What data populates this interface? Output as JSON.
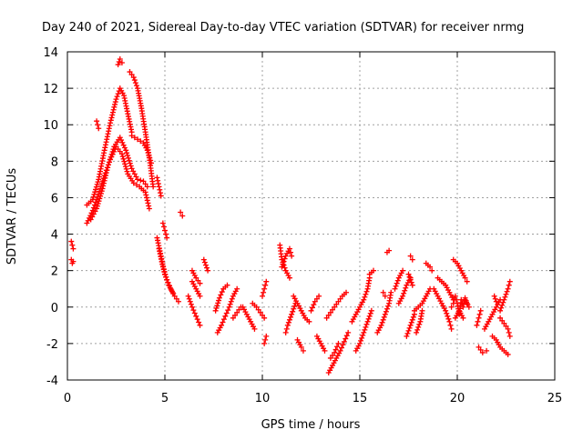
{
  "chart_data": {
    "type": "scatter",
    "title": "Day 240 of 2021, Sidereal Day-to-day VTEC variation (SDTVAR) for receiver nrmg",
    "xlabel": "GPS time / hours",
    "ylabel": "SDTVAR / TECUs",
    "xlim": [
      0,
      25
    ],
    "ylim": [
      -4,
      14
    ],
    "x_ticks": [
      0,
      5,
      10,
      15,
      20,
      25
    ],
    "y_ticks": [
      -4,
      -2,
      0,
      2,
      4,
      6,
      8,
      10,
      12,
      14
    ],
    "grid": true,
    "marker": "+",
    "marker_color": "#ff0000",
    "series": [
      {
        "name": "SDTVAR",
        "segments": [
          [
            [
              0.2,
              3.6
            ],
            [
              0.25,
              3.4
            ],
            [
              0.3,
              3.2
            ]
          ],
          [
            [
              0.2,
              2.6
            ],
            [
              0.25,
              2.4
            ],
            [
              0.3,
              2.5
            ]
          ],
          [
            [
              1.0,
              4.6
            ],
            [
              1.3,
              5.3
            ],
            [
              1.6,
              6.2
            ],
            [
              1.9,
              7.2
            ],
            [
              2.2,
              8.1
            ],
            [
              2.5,
              8.8
            ],
            [
              2.8,
              8.4
            ],
            [
              3.1,
              7.3
            ],
            [
              3.4,
              6.8
            ],
            [
              3.7,
              6.6
            ],
            [
              4.0,
              6.3
            ],
            [
              4.2,
              5.4
            ]
          ],
          [
            [
              1.0,
              5.6
            ],
            [
              1.3,
              5.9
            ],
            [
              1.6,
              7.0
            ],
            [
              1.9,
              8.6
            ],
            [
              2.2,
              10.1
            ],
            [
              2.5,
              11.4
            ],
            [
              2.7,
              12.0
            ],
            [
              2.9,
              11.6
            ],
            [
              3.1,
              10.6
            ],
            [
              3.3,
              9.6
            ]
          ],
          [
            [
              1.2,
              4.8
            ],
            [
              1.5,
              5.4
            ],
            [
              1.8,
              6.5
            ],
            [
              2.1,
              7.8
            ],
            [
              2.4,
              8.8
            ],
            [
              2.7,
              9.3
            ],
            [
              3.0,
              8.6
            ],
            [
              3.3,
              7.6
            ],
            [
              3.6,
              7.0
            ],
            [
              3.9,
              6.9
            ],
            [
              4.1,
              6.6
            ]
          ],
          [
            [
              2.6,
              13.3
            ],
            [
              2.7,
              13.6
            ],
            [
              2.8,
              13.4
            ]
          ],
          [
            [
              3.2,
              12.9
            ],
            [
              3.4,
              12.6
            ],
            [
              3.6,
              12.0
            ],
            [
              3.8,
              10.9
            ],
            [
              4.0,
              9.6
            ],
            [
              4.2,
              8.2
            ],
            [
              4.4,
              6.6
            ]
          ],
          [
            [
              3.3,
              9.4
            ],
            [
              3.6,
              9.2
            ],
            [
              3.9,
              9.0
            ],
            [
              4.1,
              8.6
            ],
            [
              4.3,
              7.9
            ]
          ],
          [
            [
              1.5,
              10.2
            ],
            [
              1.6,
              9.8
            ]
          ],
          [
            [
              4.6,
              7.1
            ],
            [
              4.7,
              6.6
            ],
            [
              4.8,
              6.1
            ]
          ],
          [
            [
              4.6,
              3.8
            ],
            [
              4.8,
              2.8
            ],
            [
              5.0,
              1.8
            ],
            [
              5.2,
              1.2
            ],
            [
              5.4,
              0.8
            ]
          ],
          [
            [
              4.7,
              3.2
            ],
            [
              4.9,
              2.2
            ],
            [
              5.1,
              1.5
            ],
            [
              5.3,
              1.0
            ],
            [
              5.5,
              0.6
            ],
            [
              5.7,
              0.3
            ]
          ],
          [
            [
              4.9,
              4.6
            ],
            [
              5.0,
              4.2
            ],
            [
              5.1,
              3.8
            ]
          ],
          [
            [
              5.8,
              5.2
            ],
            [
              5.9,
              5.0
            ]
          ],
          [
            [
              6.2,
              0.6
            ],
            [
              6.4,
              0.0
            ],
            [
              6.6,
              -0.5
            ],
            [
              6.8,
              -1.0
            ]
          ],
          [
            [
              6.4,
              1.4
            ],
            [
              6.6,
              1.0
            ],
            [
              6.8,
              0.6
            ]
          ],
          [
            [
              6.4,
              2.0
            ],
            [
              6.6,
              1.6
            ],
            [
              6.8,
              1.3
            ]
          ],
          [
            [
              7.0,
              2.6
            ],
            [
              7.1,
              2.3
            ],
            [
              7.2,
              2.0
            ]
          ],
          [
            [
              7.6,
              -0.2
            ],
            [
              7.8,
              0.5
            ],
            [
              8.0,
              1.0
            ],
            [
              8.2,
              1.2
            ]
          ],
          [
            [
              7.7,
              -1.4
            ],
            [
              7.9,
              -1.0
            ],
            [
              8.1,
              -0.5
            ],
            [
              8.3,
              0.0
            ],
            [
              8.5,
              0.6
            ],
            [
              8.7,
              1.0
            ]
          ],
          [
            [
              8.5,
              -0.6
            ],
            [
              8.7,
              -0.3
            ],
            [
              8.9,
              0.0
            ]
          ],
          [
            [
              9.0,
              0.0
            ],
            [
              9.2,
              -0.4
            ],
            [
              9.4,
              -0.8
            ],
            [
              9.6,
              -1.2
            ]
          ],
          [
            [
              9.5,
              0.2
            ],
            [
              9.7,
              0.0
            ],
            [
              9.9,
              -0.3
            ],
            [
              10.1,
              -0.6
            ]
          ],
          [
            [
              10.0,
              0.6
            ],
            [
              10.1,
              1.0
            ],
            [
              10.2,
              1.4
            ]
          ],
          [
            [
              10.1,
              -2.0
            ],
            [
              10.2,
              -1.6
            ]
          ],
          [
            [
              10.9,
              3.4
            ],
            [
              11.0,
              2.6
            ],
            [
              11.2,
              2.0
            ],
            [
              11.4,
              1.6
            ]
          ],
          [
            [
              11.0,
              2.2
            ],
            [
              11.2,
              2.8
            ],
            [
              11.4,
              3.2
            ],
            [
              11.5,
              2.8
            ]
          ],
          [
            [
              11.2,
              -1.4
            ],
            [
              11.3,
              -1.0
            ],
            [
              11.5,
              -0.4
            ],
            [
              11.7,
              0.2
            ]
          ],
          [
            [
              11.6,
              0.6
            ],
            [
              11.8,
              0.2
            ],
            [
              12.0,
              -0.2
            ],
            [
              12.2,
              -0.6
            ],
            [
              12.4,
              -0.8
            ]
          ],
          [
            [
              11.8,
              -1.8
            ],
            [
              12.0,
              -2.2
            ],
            [
              12.1,
              -2.4
            ]
          ],
          [
            [
              12.5,
              -0.2
            ],
            [
              12.7,
              0.3
            ],
            [
              12.9,
              0.6
            ]
          ],
          [
            [
              12.8,
              -1.6
            ],
            [
              13.0,
              -2.0
            ],
            [
              13.2,
              -2.4
            ]
          ],
          [
            [
              13.4,
              -3.6
            ],
            [
              13.6,
              -3.2
            ],
            [
              13.8,
              -2.8
            ],
            [
              14.0,
              -2.4
            ],
            [
              14.2,
              -1.9
            ],
            [
              14.4,
              -1.4
            ]
          ],
          [
            [
              13.3,
              -0.6
            ],
            [
              13.5,
              -0.3
            ],
            [
              13.7,
              0.0
            ],
            [
              13.9,
              0.3
            ],
            [
              14.1,
              0.6
            ],
            [
              14.3,
              0.8
            ]
          ],
          [
            [
              13.5,
              -2.8
            ],
            [
              13.7,
              -2.5
            ],
            [
              13.9,
              -2.0
            ]
          ],
          [
            [
              14.6,
              -0.8
            ],
            [
              14.8,
              -0.4
            ],
            [
              15.0,
              0.0
            ],
            [
              15.2,
              0.4
            ],
            [
              15.4,
              1.0
            ],
            [
              15.5,
              1.6
            ]
          ],
          [
            [
              14.8,
              -2.4
            ],
            [
              15.0,
              -2.0
            ],
            [
              15.2,
              -1.4
            ],
            [
              15.4,
              -0.8
            ],
            [
              15.6,
              -0.2
            ]
          ],
          [
            [
              15.5,
              1.8
            ],
            [
              15.7,
              2.0
            ]
          ],
          [
            [
              15.9,
              -1.4
            ],
            [
              16.1,
              -1.0
            ],
            [
              16.3,
              -0.4
            ],
            [
              16.5,
              0.2
            ],
            [
              16.6,
              0.8
            ]
          ],
          [
            [
              16.2,
              0.8
            ],
            [
              16.3,
              0.6
            ]
          ],
          [
            [
              16.4,
              3.0
            ],
            [
              16.5,
              3.1
            ]
          ],
          [
            [
              16.8,
              1.0
            ],
            [
              17.0,
              1.6
            ],
            [
              17.2,
              2.0
            ]
          ],
          [
            [
              17.0,
              0.2
            ],
            [
              17.2,
              0.6
            ],
            [
              17.4,
              1.2
            ],
            [
              17.6,
              1.6
            ]
          ],
          [
            [
              17.4,
              -1.6
            ],
            [
              17.6,
              -1.0
            ],
            [
              17.8,
              -0.4
            ]
          ],
          [
            [
              17.5,
              1.8
            ],
            [
              17.7,
              1.2
            ]
          ],
          [
            [
              17.8,
              -0.2
            ],
            [
              18.0,
              0.0
            ],
            [
              18.2,
              0.2
            ],
            [
              18.4,
              0.6
            ],
            [
              18.6,
              1.0
            ]
          ],
          [
            [
              17.9,
              -1.4
            ],
            [
              18.1,
              -0.8
            ],
            [
              18.2,
              -0.2
            ]
          ],
          [
            [
              17.6,
              2.8
            ],
            [
              17.7,
              2.6
            ]
          ],
          [
            [
              18.4,
              2.4
            ],
            [
              18.6,
              2.2
            ],
            [
              18.7,
              2.0
            ]
          ],
          [
            [
              18.8,
              1.0
            ],
            [
              19.0,
              0.6
            ],
            [
              19.2,
              0.2
            ],
            [
              19.4,
              -0.2
            ],
            [
              19.6,
              -0.8
            ],
            [
              19.7,
              -1.2
            ]
          ],
          [
            [
              19.0,
              1.6
            ],
            [
              19.2,
              1.4
            ],
            [
              19.4,
              1.2
            ],
            [
              19.6,
              0.8
            ],
            [
              19.8,
              0.4
            ]
          ],
          [
            [
              19.8,
              2.6
            ],
            [
              20.0,
              2.4
            ],
            [
              20.2,
              2.0
            ],
            [
              20.4,
              1.6
            ],
            [
              20.5,
              1.4
            ]
          ],
          [
            [
              19.7,
              0.0
            ],
            [
              19.8,
              0.2
            ],
            [
              19.9,
              0.6
            ],
            [
              20.0,
              0.2
            ],
            [
              20.1,
              -0.4
            ],
            [
              20.2,
              0.4
            ],
            [
              20.3,
              0.0
            ],
            [
              20.4,
              0.5
            ],
            [
              20.5,
              0.2
            ]
          ],
          [
            [
              19.9,
              -0.6
            ],
            [
              20.1,
              -0.2
            ],
            [
              20.3,
              -0.6
            ]
          ],
          [
            [
              20.4,
              0.4
            ],
            [
              20.6,
              0.0
            ]
          ],
          [
            [
              21.0,
              -1.0
            ],
            [
              21.1,
              -0.6
            ],
            [
              21.2,
              -0.2
            ]
          ],
          [
            [
              21.1,
              -2.2
            ],
            [
              21.3,
              -2.5
            ],
            [
              21.5,
              -2.4
            ]
          ],
          [
            [
              21.4,
              -1.2
            ],
            [
              21.6,
              -0.8
            ],
            [
              21.8,
              -0.4
            ],
            [
              22.0,
              0.0
            ],
            [
              22.2,
              0.4
            ]
          ],
          [
            [
              21.8,
              -1.6
            ],
            [
              22.0,
              -1.8
            ],
            [
              22.2,
              -2.2
            ],
            [
              22.4,
              -2.4
            ],
            [
              22.6,
              -2.6
            ]
          ],
          [
            [
              21.9,
              0.6
            ],
            [
              22.0,
              0.3
            ]
          ],
          [
            [
              22.2,
              -0.2
            ],
            [
              22.4,
              0.4
            ],
            [
              22.6,
              1.0
            ],
            [
              22.7,
              1.4
            ]
          ],
          [
            [
              22.2,
              -0.6
            ],
            [
              22.4,
              -0.9
            ],
            [
              22.6,
              -1.2
            ],
            [
              22.7,
              -1.6
            ]
          ]
        ]
      }
    ]
  }
}
